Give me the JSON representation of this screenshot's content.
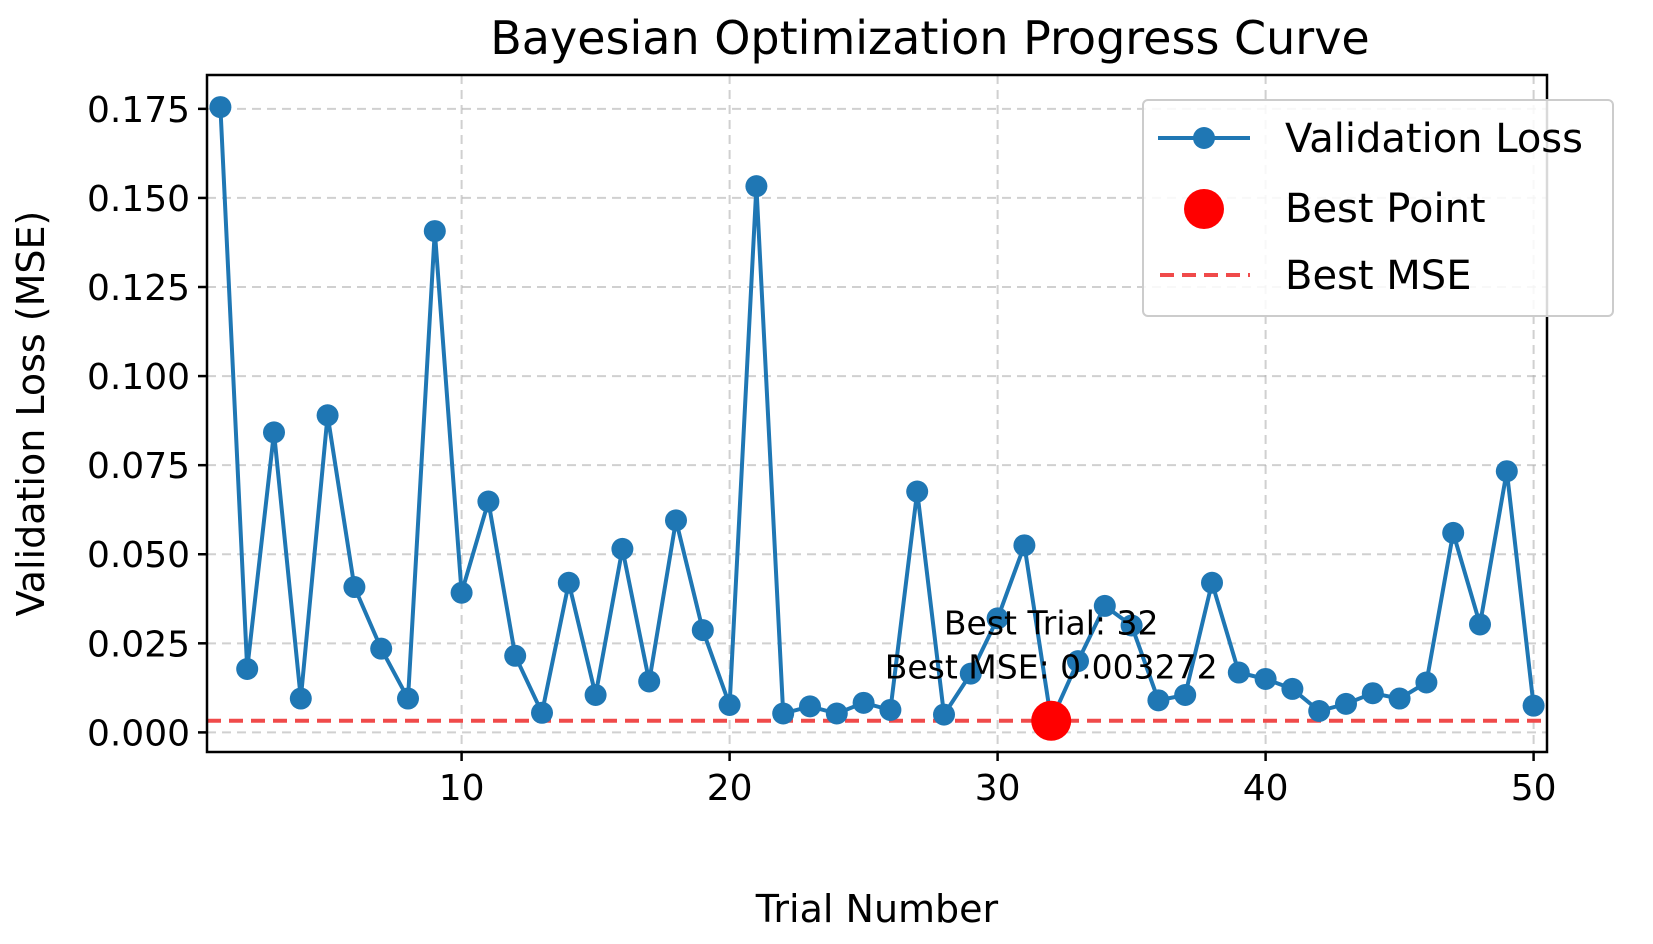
{
  "chart_data": {
    "type": "line",
    "title": "Bayesian Optimization Progress Curve",
    "xlabel": "Trial Number",
    "ylabel": "Validation Loss (MSE)",
    "xlim": [
      0.5,
      50.5
    ],
    "ylim": [
      -0.0055,
      0.1845
    ],
    "xticks": [
      10,
      20,
      30,
      40,
      50
    ],
    "yticks": [
      0.0,
      0.025,
      0.05,
      0.075,
      0.1,
      0.125,
      0.15,
      0.175
    ],
    "ytick_labels": [
      "0.000",
      "0.025",
      "0.050",
      "0.075",
      "0.100",
      "0.125",
      "0.150",
      "0.175"
    ],
    "grid": true,
    "legend_position": "top-right",
    "series": [
      {
        "name": "Validation Loss",
        "color": "#1f77b4",
        "x": [
          1,
          2,
          3,
          4,
          5,
          6,
          7,
          8,
          9,
          10,
          11,
          12,
          13,
          14,
          15,
          16,
          17,
          18,
          19,
          20,
          21,
          22,
          23,
          24,
          25,
          26,
          27,
          28,
          29,
          30,
          31,
          32,
          33,
          34,
          35,
          36,
          37,
          38,
          39,
          40,
          41,
          42,
          43,
          44,
          45,
          46,
          47,
          48,
          49,
          50
        ],
        "y": [
          0.1755,
          0.0178,
          0.0842,
          0.0095,
          0.089,
          0.0408,
          0.0235,
          0.0095,
          0.1407,
          0.0392,
          0.0648,
          0.0215,
          0.0055,
          0.042,
          0.0105,
          0.0515,
          0.0143,
          0.0595,
          0.0287,
          0.0077,
          0.1533,
          0.0053,
          0.0073,
          0.0053,
          0.0083,
          0.0063,
          0.0676,
          0.005,
          0.0165,
          0.032,
          0.0525,
          0.0033,
          0.02,
          0.0355,
          0.03,
          0.009,
          0.0105,
          0.042,
          0.0168,
          0.015,
          0.0122,
          0.006,
          0.008,
          0.011,
          0.0095,
          0.014,
          0.056,
          0.0303,
          0.0733,
          0.0075
        ]
      }
    ],
    "best_point": {
      "name": "Best Point",
      "x": 32,
      "y": 0.003272,
      "color": "#ff0000"
    },
    "best_line": {
      "name": "Best MSE",
      "y": 0.003272,
      "color": "#f04a4a"
    },
    "annotation": {
      "line1": "Best Trial: 32",
      "line2": "Best MSE: 0.003272",
      "x": 32,
      "y": 0.003272
    },
    "legend": [
      "Validation Loss",
      "Best Point",
      "Best MSE"
    ]
  }
}
